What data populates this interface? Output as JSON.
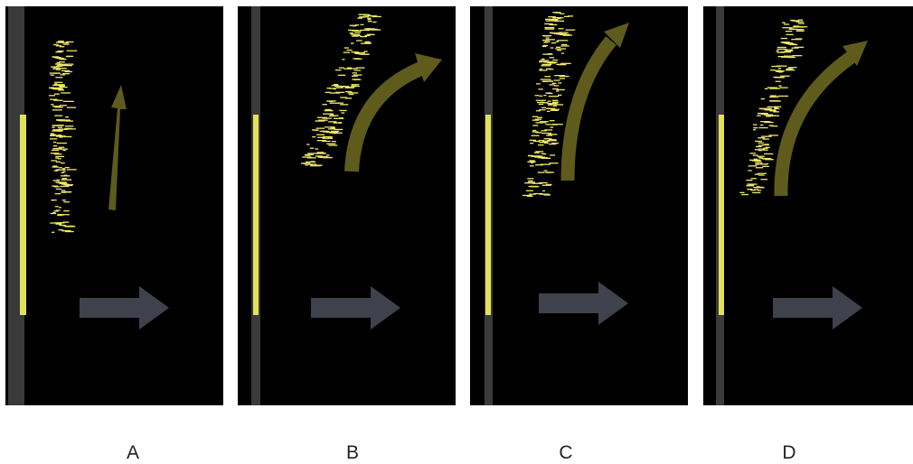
{
  "colors": {
    "background": "#000000",
    "strip": "#3a3a3a",
    "yellow_bar": "#e3e15a",
    "speckle": "#f0e86a",
    "olive_arrow": "#5e5b1c",
    "gray_arrow": "#3f414d"
  },
  "panels": [
    {
      "label": "A",
      "arrow": "straight"
    },
    {
      "label": "B",
      "arrow": "curved"
    },
    {
      "label": "C",
      "arrow": "curved"
    },
    {
      "label": "D",
      "arrow": "curved"
    }
  ]
}
